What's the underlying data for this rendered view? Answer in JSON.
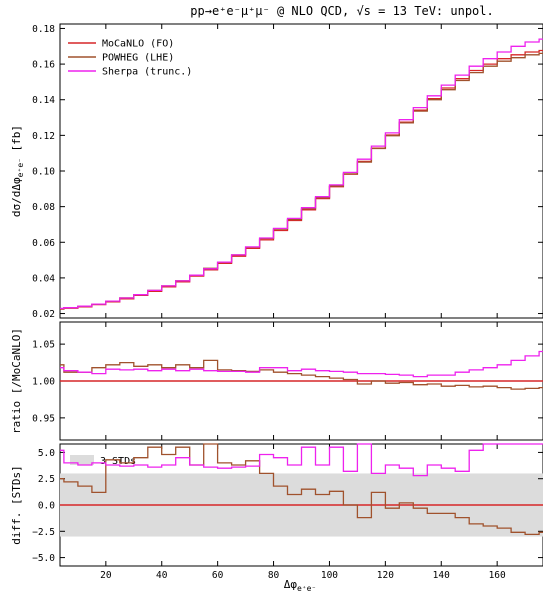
{
  "title": "pp→e⁺e⁻μ⁺μ⁻  @ NLO QCD, √s = 13 TeV: unpol.",
  "xlabel": "Δφ",
  "xlabel_sub": "e⁺e⁻",
  "colors": {
    "mocanlo": "#d62728",
    "powheg": "#a0522d",
    "sherpa": "#ee22ee",
    "band": "#dcdcdc"
  },
  "chart_data": [
    {
      "type": "line",
      "step": true,
      "panel": "main",
      "ylabel": "dσ/dΔφ",
      "ylabel_sub": "e⁺e⁻",
      "ylabel_unit": " [fb]",
      "xlim": [
        3.6,
        176.4
      ],
      "ylim": [
        0.0175,
        0.1825
      ],
      "yticks": [
        0.02,
        0.04,
        0.06,
        0.08,
        0.1,
        0.12,
        0.14,
        0.16,
        0.18
      ],
      "ytick_labels": [
        "0.02",
        "0.04",
        "0.06",
        "0.08",
        "0.10",
        "0.12",
        "0.14",
        "0.16",
        "0.18"
      ],
      "xticks": [
        20,
        40,
        60,
        80,
        100,
        120,
        140,
        160
      ],
      "show_xtick_labels": false,
      "legend_position": "top-left",
      "bin_edges": [
        0,
        5,
        10,
        15,
        20,
        25,
        30,
        35,
        40,
        45,
        50,
        55,
        60,
        65,
        70,
        75,
        80,
        85,
        90,
        95,
        100,
        105,
        110,
        115,
        120,
        125,
        130,
        135,
        140,
        145,
        150,
        155,
        160,
        165,
        170,
        175,
        180
      ],
      "series": [
        {
          "name": "MoCaNLO (FO)",
          "key": "mocanlo",
          "values": [
            0.0225,
            0.023,
            0.0238,
            0.025,
            0.0266,
            0.0283,
            0.0302,
            0.0325,
            0.035,
            0.0378,
            0.041,
            0.0445,
            0.0482,
            0.0522,
            0.0566,
            0.0614,
            0.0666,
            0.0722,
            0.0782,
            0.0845,
            0.0912,
            0.0982,
            0.1054,
            0.1128,
            0.1202,
            0.1274,
            0.1342,
            0.1406,
            0.1466,
            0.1518,
            0.1564,
            0.16,
            0.163,
            0.1652,
            0.1668,
            0.1676
          ]
        },
        {
          "name": "POWHEG (LHE)",
          "key": "powheg",
          "values": [
            0.0228,
            0.0233,
            0.0241,
            0.0253,
            0.027,
            0.0288,
            0.0306,
            0.033,
            0.0355,
            0.0384,
            0.0416,
            0.0454,
            0.0489,
            0.0529,
            0.0573,
            0.0622,
            0.0674,
            0.0728,
            0.0788,
            0.085,
            0.0915,
            0.0984,
            0.105,
            0.1126,
            0.1198,
            0.127,
            0.1336,
            0.14,
            0.1456,
            0.1508,
            0.1552,
            0.1588,
            0.1616,
            0.1636,
            0.1652,
            0.166
          ]
        },
        {
          "name": "Sherpa (trunc.)",
          "key": "sherpa",
          "values": [
            0.0229,
            0.0233,
            0.0241,
            0.0253,
            0.027,
            0.0287,
            0.0306,
            0.033,
            0.0355,
            0.0383,
            0.0415,
            0.0451,
            0.0489,
            0.0529,
            0.0574,
            0.0624,
            0.0678,
            0.0734,
            0.0794,
            0.0856,
            0.0922,
            0.0992,
            0.1066,
            0.114,
            0.1214,
            0.1288,
            0.1356,
            0.1422,
            0.1482,
            0.1538,
            0.1588,
            0.163,
            0.1668,
            0.17,
            0.1724,
            0.174
          ]
        }
      ]
    },
    {
      "type": "line",
      "step": true,
      "panel": "ratio",
      "ylabel": "ratio [/MoCaNLO]",
      "xlim": [
        3.6,
        176.4
      ],
      "ylim": [
        0.92,
        1.08
      ],
      "yticks": [
        0.95,
        1.0,
        1.05
      ],
      "ytick_labels": [
        "0.95",
        "1.00",
        "1.05"
      ],
      "xticks": [
        20,
        40,
        60,
        80,
        100,
        120,
        140,
        160
      ],
      "show_xtick_labels": false,
      "reference_line": 1.0,
      "bin_edges": [
        0,
        5,
        10,
        15,
        20,
        25,
        30,
        35,
        40,
        45,
        50,
        55,
        60,
        65,
        70,
        75,
        80,
        85,
        90,
        95,
        100,
        105,
        110,
        115,
        120,
        125,
        130,
        135,
        140,
        145,
        150,
        155,
        160,
        165,
        170,
        175,
        180
      ],
      "series": [
        {
          "key": "powheg",
          "values": [
            1.022,
            1.012,
            1.012,
            1.018,
            1.022,
            1.025,
            1.02,
            1.022,
            1.018,
            1.022,
            1.018,
            1.028,
            1.015,
            1.014,
            1.013,
            1.015,
            1.012,
            1.01,
            1.008,
            1.006,
            1.004,
            1.002,
            0.996,
            1.0,
            0.997,
            0.998,
            0.995,
            0.996,
            0.993,
            0.994,
            0.992,
            0.993,
            0.991,
            0.989,
            0.99,
            0.991
          ]
        },
        {
          "key": "sherpa",
          "values": [
            1.018,
            1.014,
            1.012,
            1.01,
            1.016,
            1.015,
            1.016,
            1.014,
            1.016,
            1.014,
            1.016,
            1.014,
            1.013,
            1.013,
            1.012,
            1.018,
            1.018,
            1.014,
            1.016,
            1.014,
            1.013,
            1.012,
            1.01,
            1.01,
            1.009,
            1.008,
            1.006,
            1.008,
            1.008,
            1.012,
            1.015,
            1.018,
            1.022,
            1.028,
            1.034,
            1.04
          ]
        }
      ]
    },
    {
      "type": "line",
      "step": true,
      "panel": "diff",
      "ylabel": "diff. [STDs]",
      "xlim": [
        3.6,
        176.4
      ],
      "ylim": [
        -5.8,
        5.8
      ],
      "yticks": [
        -5.0,
        -2.5,
        0.0,
        2.5,
        5.0
      ],
      "ytick_labels": [
        "−5.0",
        "−2.5",
        "0.0",
        "2.5",
        "5.0"
      ],
      "xticks": [
        20,
        40,
        60,
        80,
        100,
        120,
        140,
        160
      ],
      "xtick_labels": [
        "20",
        "40",
        "60",
        "80",
        "100",
        "120",
        "140",
        "160"
      ],
      "show_xtick_labels": true,
      "reference_line": 0.0,
      "band": {
        "low": -3,
        "high": 3,
        "label": "3 STDs"
      },
      "bin_edges": [
        0,
        5,
        10,
        15,
        20,
        25,
        30,
        35,
        40,
        45,
        50,
        55,
        60,
        65,
        70,
        75,
        80,
        85,
        90,
        95,
        100,
        105,
        110,
        115,
        120,
        125,
        130,
        135,
        140,
        145,
        150,
        155,
        160,
        165,
        170,
        175,
        180
      ],
      "series": [
        {
          "key": "powheg",
          "values": [
            2.5,
            2.2,
            1.8,
            1.2,
            4.3,
            4.0,
            4.5,
            5.5,
            4.8,
            5.5,
            3.8,
            6.0,
            4.0,
            3.8,
            4.2,
            3.0,
            1.8,
            1.0,
            1.5,
            1.0,
            1.3,
            0.0,
            -1.2,
            1.2,
            -0.3,
            0.2,
            -0.3,
            -0.8,
            -0.8,
            -1.2,
            -1.8,
            -2.0,
            -2.2,
            -2.6,
            -2.8,
            -2.6
          ]
        },
        {
          "key": "sherpa",
          "values": [
            5.2,
            4.0,
            3.8,
            4.0,
            3.8,
            3.7,
            3.8,
            3.6,
            3.8,
            4.5,
            3.8,
            3.6,
            3.5,
            3.6,
            3.7,
            4.8,
            4.5,
            3.8,
            5.5,
            3.8,
            5.5,
            3.2,
            5.8,
            3.0,
            3.8,
            3.5,
            2.8,
            3.8,
            3.5,
            3.2,
            5.2,
            5.8,
            6.0,
            6.0,
            6.0,
            6.0
          ]
        }
      ]
    }
  ]
}
